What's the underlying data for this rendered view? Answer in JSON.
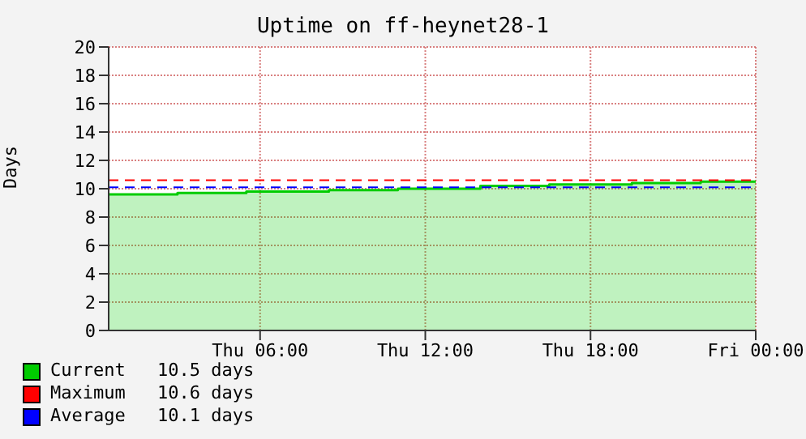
{
  "chart_data": {
    "type": "area",
    "title": "Uptime on ff-heynet28-1",
    "ylabel": "Days",
    "categories": [
      null,
      null,
      null,
      null,
      null,
      null,
      null,
      null,
      null,
      null,
      null,
      "Thu 06:00",
      null,
      null,
      null,
      null,
      null,
      null,
      null,
      null,
      null,
      null,
      null,
      "Thu 12:00",
      null,
      null,
      null,
      null,
      null,
      null,
      null,
      null,
      null,
      null,
      null,
      "Thu 18:00",
      null,
      null,
      null,
      null,
      null,
      null,
      null,
      null,
      null,
      null,
      null,
      "Fri 00:00"
    ],
    "series": [
      {
        "name": "Current",
        "color": "#00cc00",
        "values": [
          9.6,
          9.6,
          9.6,
          9.6,
          9.6,
          9.7,
          9.7,
          9.7,
          9.7,
          9.7,
          9.8,
          9.8,
          9.8,
          9.8,
          9.8,
          9.8,
          9.9,
          9.9,
          9.9,
          9.9,
          9.9,
          10.0,
          10.0,
          10.0,
          10.0,
          10.0,
          10.0,
          10.2,
          10.2,
          10.2,
          10.2,
          10.2,
          10.3,
          10.3,
          10.3,
          10.3,
          10.3,
          10.3,
          10.4,
          10.4,
          10.4,
          10.4,
          10.4,
          10.5,
          10.5,
          10.5,
          10.5,
          10.5
        ]
      }
    ],
    "ylim": [
      0,
      20
    ],
    "yticks": [
      0,
      2,
      4,
      6,
      8,
      10,
      12,
      14,
      16,
      18,
      20
    ],
    "ref_lines": [
      {
        "axis": "y",
        "value": 10.6,
        "label": "Maximum",
        "color": "#ff0000",
        "line_style": "dashed"
      },
      {
        "axis": "y",
        "value": 10.1,
        "label": "Average",
        "color": "#0000ff",
        "line_style": "dashed"
      }
    ],
    "annotations": [
      "10.5 days",
      "10.6 days",
      "10.1 days"
    ],
    "grid": true,
    "legend": "bottom left"
  }
}
